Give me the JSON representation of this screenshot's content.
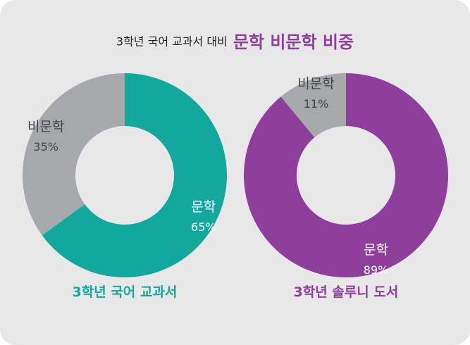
{
  "title": {
    "lead": "3학년 국어 교과서 대비",
    "emphasis": "문학 비문학 비중"
  },
  "colors": {
    "teal": "#13a89e",
    "purple": "#8e3f9b",
    "gray": "#a7a8ab",
    "background": "#e8e8e8"
  },
  "chart_data": [
    {
      "type": "pie",
      "donut": true,
      "title": "3학년 국어 교과서",
      "slices": [
        {
          "label": "문학",
          "value": 65,
          "value_text": "65%",
          "color": "#13a89e"
        },
        {
          "label": "비문학",
          "value": 35,
          "value_text": "35%",
          "color": "#a7a8ab"
        }
      ]
    },
    {
      "type": "pie",
      "donut": true,
      "title": "3학년 솔루니 도서",
      "slices": [
        {
          "label": "문학",
          "value": 89,
          "value_text": "89%",
          "color": "#8e3f9b"
        },
        {
          "label": "비문학",
          "value": 11,
          "value_text": "11%",
          "color": "#a7a8ab"
        }
      ]
    }
  ]
}
